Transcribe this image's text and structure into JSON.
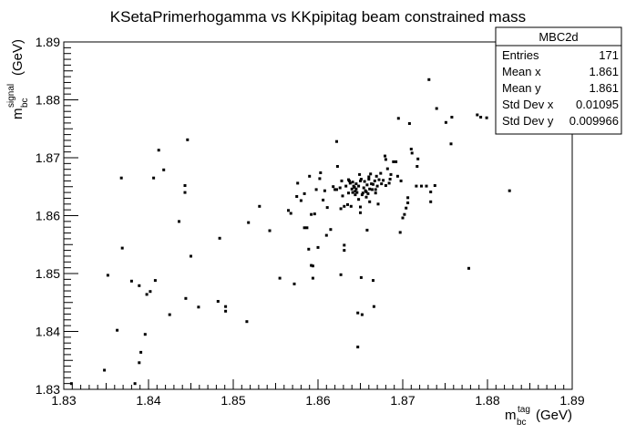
{
  "chart_data": {
    "type": "scatter",
    "title": "KSetaPrimerhogamma vs KKpipitag beam constrained mass",
    "xlabel": {
      "main": "m",
      "sup": "tag",
      "sub": "bc",
      "unit": "(GeV)"
    },
    "ylabel": {
      "main": "m",
      "sup": "signal",
      "sub": "bc",
      "unit": "(GeV)"
    },
    "xlim": [
      1.83,
      1.89
    ],
    "ylim": [
      1.83,
      1.89
    ],
    "xticks": [
      "1.83",
      "1.84",
      "1.85",
      "1.86",
      "1.87",
      "1.88",
      "1.89"
    ],
    "yticks": [
      "1.83",
      "1.84",
      "1.85",
      "1.86",
      "1.87",
      "1.88",
      "1.89"
    ],
    "grid": false,
    "legend": "top-right",
    "stats": {
      "name": "MBC2d",
      "rows": [
        {
          "label": "Entries",
          "value": "171"
        },
        {
          "label": "Mean x",
          "value": "1.861"
        },
        {
          "label": "Mean y",
          "value": "1.861"
        },
        {
          "label": "Std Dev x",
          "value": "0.01095"
        },
        {
          "label": "Std Dev y",
          "value": "0.009966"
        }
      ]
    },
    "points": [
      [
        1.8309,
        1.831
      ],
      [
        1.8348,
        1.8333
      ],
      [
        1.8352,
        1.8497
      ],
      [
        1.8363,
        1.8402
      ],
      [
        1.8368,
        1.8665
      ],
      [
        1.8369,
        1.8544
      ],
      [
        1.838,
        1.8487
      ],
      [
        1.8384,
        1.831
      ],
      [
        1.8389,
        1.8479
      ],
      [
        1.8389,
        1.8346
      ],
      [
        1.8391,
        1.8364
      ],
      [
        1.8396,
        1.8395
      ],
      [
        1.8398,
        1.8464
      ],
      [
        1.8402,
        1.8469
      ],
      [
        1.8406,
        1.8665
      ],
      [
        1.8408,
        1.8488
      ],
      [
        1.8412,
        1.8713
      ],
      [
        1.8418,
        1.8679
      ],
      [
        1.8425,
        1.8429
      ],
      [
        1.8436,
        1.859
      ],
      [
        1.8443,
        1.8652
      ],
      [
        1.8443,
        1.864
      ],
      [
        1.8444,
        1.8457
      ],
      [
        1.8446,
        1.8731
      ],
      [
        1.845,
        1.853
      ],
      [
        1.8459,
        1.8442
      ],
      [
        1.8482,
        1.8452
      ],
      [
        1.8484,
        1.8561
      ],
      [
        1.8491,
        1.8443
      ],
      [
        1.8491,
        1.8435
      ],
      [
        1.8516,
        1.8417
      ],
      [
        1.8518,
        1.8588
      ],
      [
        1.8531,
        1.8616
      ],
      [
        1.8543,
        1.8574
      ],
      [
        1.8555,
        1.8492
      ],
      [
        1.8565,
        1.8609
      ],
      [
        1.8568,
        1.8604
      ],
      [
        1.8572,
        1.8482
      ],
      [
        1.8575,
        1.8633
      ],
      [
        1.8576,
        1.8656
      ],
      [
        1.858,
        1.8626
      ],
      [
        1.8584,
        1.8638
      ],
      [
        1.8584,
        1.8579
      ],
      [
        1.8587,
        1.8579
      ],
      [
        1.8589,
        1.8542
      ],
      [
        1.859,
        1.8668
      ],
      [
        1.8592,
        1.8514
      ],
      [
        1.8592,
        1.8602
      ],
      [
        1.8594,
        1.8513
      ],
      [
        1.8594,
        1.8492
      ],
      [
        1.8596,
        1.8603
      ],
      [
        1.8598,
        1.8645
      ],
      [
        1.86,
        1.8545
      ],
      [
        1.8602,
        1.8664
      ],
      [
        1.8603,
        1.8674
      ],
      [
        1.8606,
        1.8627
      ],
      [
        1.8608,
        1.8643
      ],
      [
        1.861,
        1.8566
      ],
      [
        1.8611,
        1.8614
      ],
      [
        1.8615,
        1.8576
      ],
      [
        1.8618,
        1.865
      ],
      [
        1.862,
        1.8645
      ],
      [
        1.8622,
        1.8728
      ],
      [
        1.8622,
        1.8645
      ],
      [
        1.8623,
        1.8685
      ],
      [
        1.8626,
        1.8648
      ],
      [
        1.8627,
        1.8498
      ],
      [
        1.8627,
        1.8612
      ],
      [
        1.8628,
        1.866
      ],
      [
        1.8629,
        1.8634
      ],
      [
        1.8631,
        1.854
      ],
      [
        1.8631,
        1.8549
      ],
      [
        1.8631,
        1.8616
      ],
      [
        1.8633,
        1.8651
      ],
      [
        1.8635,
        1.8619
      ],
      [
        1.8636,
        1.8639
      ],
      [
        1.8637,
        1.866
      ],
      [
        1.8638,
        1.8656
      ],
      [
        1.8639,
        1.8616
      ],
      [
        1.864,
        1.8646
      ],
      [
        1.8641,
        1.864
      ],
      [
        1.8642,
        1.8651
      ],
      [
        1.8643,
        1.8649
      ],
      [
        1.8644,
        1.8642
      ],
      [
        1.8645,
        1.8646
      ],
      [
        1.8646,
        1.864
      ],
      [
        1.8647,
        1.8373
      ],
      [
        1.8647,
        1.8432
      ],
      [
        1.8648,
        1.8651
      ],
      [
        1.8648,
        1.8628
      ],
      [
        1.8649,
        1.8671
      ],
      [
        1.865,
        1.8615
      ],
      [
        1.865,
        1.8605
      ],
      [
        1.8651,
        1.8663
      ],
      [
        1.8651,
        1.8493
      ],
      [
        1.8652,
        1.8429
      ],
      [
        1.8653,
        1.8639
      ],
      [
        1.8654,
        1.8648
      ],
      [
        1.8655,
        1.8659
      ],
      [
        1.8656,
        1.8643
      ],
      [
        1.8657,
        1.8641
      ],
      [
        1.8658,
        1.8653
      ],
      [
        1.8658,
        1.8575
      ],
      [
        1.8659,
        1.8638
      ],
      [
        1.866,
        1.8663
      ],
      [
        1.8661,
        1.8646
      ],
      [
        1.8662,
        1.8672
      ],
      [
        1.8663,
        1.8655
      ],
      [
        1.8664,
        1.8645
      ],
      [
        1.8665,
        1.8488
      ],
      [
        1.8665,
        1.8654
      ],
      [
        1.8666,
        1.8443
      ],
      [
        1.8667,
        1.866
      ],
      [
        1.8668,
        1.8639
      ],
      [
        1.8669,
        1.8668
      ],
      [
        1.867,
        1.8651
      ],
      [
        1.8671,
        1.862
      ],
      [
        1.8672,
        1.8662
      ],
      [
        1.8674,
        1.8673
      ],
      [
        1.8675,
        1.8655
      ],
      [
        1.8677,
        1.8661
      ],
      [
        1.8679,
        1.8703
      ],
      [
        1.868,
        1.8697
      ],
      [
        1.868,
        1.8652
      ],
      [
        1.8682,
        1.8681
      ],
      [
        1.8684,
        1.8656
      ],
      [
        1.8685,
        1.8663
      ],
      [
        1.8686,
        1.8671
      ],
      [
        1.8689,
        1.8693
      ],
      [
        1.8692,
        1.8693
      ],
      [
        1.8694,
        1.8668
      ],
      [
        1.8695,
        1.8768
      ],
      [
        1.8697,
        1.8571
      ],
      [
        1.8698,
        1.866
      ],
      [
        1.87,
        1.8596
      ],
      [
        1.8702,
        1.8602
      ],
      [
        1.8704,
        1.8613
      ],
      [
        1.8706,
        1.8622
      ],
      [
        1.8706,
        1.8631
      ],
      [
        1.8708,
        1.8759
      ],
      [
        1.871,
        1.8715
      ],
      [
        1.8711,
        1.8708
      ],
      [
        1.8716,
        1.8651
      ],
      [
        1.8717,
        1.8685
      ],
      [
        1.8718,
        1.8698
      ],
      [
        1.8722,
        1.8651
      ],
      [
        1.8728,
        1.8651
      ],
      [
        1.8731,
        1.8835
      ],
      [
        1.8733,
        1.8624
      ],
      [
        1.8733,
        1.8641
      ],
      [
        1.8738,
        1.8652
      ],
      [
        1.874,
        1.8785
      ],
      [
        1.8751,
        1.8761
      ],
      [
        1.8757,
        1.8724
      ],
      [
        1.8758,
        1.877
      ],
      [
        1.8778,
        1.8509
      ],
      [
        1.8792,
        1.877
      ],
      [
        1.8799,
        1.8769
      ],
      [
        1.8812,
        1.8813
      ],
      [
        1.8826,
        1.8643
      ],
      [
        1.8788,
        1.8774
      ],
      [
        1.866,
        1.8667
      ],
      [
        1.865,
        1.866
      ],
      [
        1.8636,
        1.8662
      ],
      [
        1.8644,
        1.8636
      ],
      [
        1.8657,
        1.8632
      ],
      [
        1.8661,
        1.8624
      ],
      [
        1.8641,
        1.8658
      ],
      [
        1.8645,
        1.8655
      ],
      [
        1.8652,
        1.8636
      ],
      [
        1.8668,
        1.8645
      ]
    ]
  }
}
